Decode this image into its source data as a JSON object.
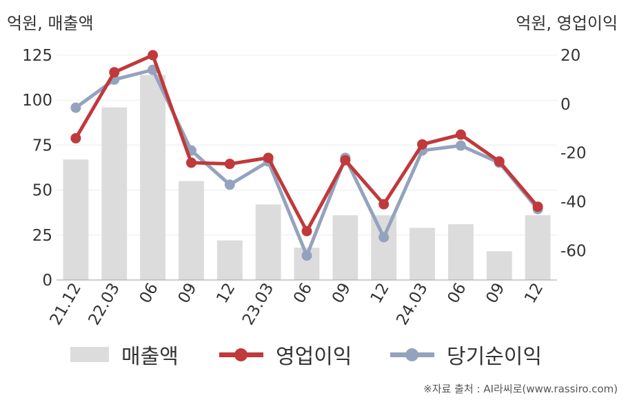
{
  "labels": {
    "left_unit": "억원, 매출액",
    "right_unit": "억원, 영업이익",
    "source": "※자료 출처 : AI라씨로(www.rassiro.com)"
  },
  "legend": {
    "revenue": "매출액",
    "operating_income": "영업이익",
    "net_income": "당기순이익"
  },
  "colors": {
    "revenue": "#dcdcdc",
    "operating_income": "#c0393b",
    "net_income": "#94a3bd"
  },
  "chart_data": {
    "type": "bar+line",
    "categories": [
      "21.12",
      "22.03",
      "06",
      "09",
      "12",
      "23.03",
      "06",
      "09",
      "12",
      "24.03",
      "06",
      "09",
      "12"
    ],
    "series": [
      {
        "name": "매출액",
        "type": "bar",
        "axis": "left",
        "values": [
          67,
          96,
          114,
          55,
          22,
          42,
          18,
          36,
          36,
          29,
          31,
          16,
          36
        ]
      },
      {
        "name": "영업이익",
        "type": "line",
        "axis": "right",
        "values": [
          -14,
          13,
          20,
          -24,
          -24.5,
          -22,
          -52,
          -23,
          -41,
          -16.5,
          -12.5,
          -23.5,
          -42
        ]
      },
      {
        "name": "당기순이익",
        "type": "line",
        "axis": "right",
        "values": [
          -1.5,
          10,
          14,
          -19,
          -33,
          -23.5,
          -62,
          -22,
          -54.5,
          -19,
          -17,
          -24,
          -43
        ]
      }
    ],
    "left_axis": {
      "ylim": [
        0,
        125
      ],
      "ticks": [
        0,
        25,
        50,
        75,
        100,
        125
      ]
    },
    "right_axis": {
      "ylim": [
        -72,
        20
      ],
      "ticks": [
        -60,
        -40,
        -20,
        0,
        20
      ]
    },
    "grid": true
  }
}
